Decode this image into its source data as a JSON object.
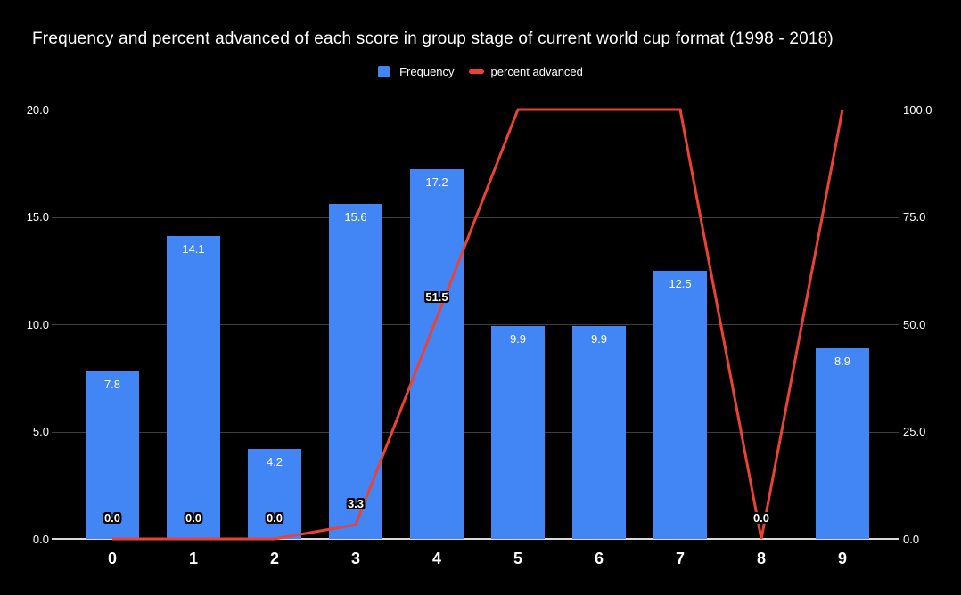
{
  "title": "Frequency and percent advanced of each score in group stage of current world cup format (1998 - 2018)",
  "legend": {
    "items": [
      {
        "label": "Frequency",
        "swatch": "square",
        "color": "#4285f4"
      },
      {
        "label": "percent advanced",
        "swatch": "line",
        "color": "#ea4335"
      }
    ]
  },
  "colors": {
    "background": "#000000",
    "bar": "#4285f4",
    "line": "#ea4335",
    "grid": "#3d3d3d",
    "axis_baseline": "#d9d9d9",
    "text": "#ffffff"
  },
  "chart_data": {
    "type": "bar",
    "subtype": "combo-bar-and-line",
    "title": "Frequency and percent advanced of each score in group stage of current world cup format (1998 - 2018)",
    "categories": [
      "0",
      "1",
      "2",
      "3",
      "4",
      "5",
      "6",
      "7",
      "8",
      "9"
    ],
    "series": [
      {
        "name": "Frequency",
        "type": "bar",
        "axis": "left",
        "color": "#4285f4",
        "values": [
          7.8,
          14.1,
          4.2,
          15.6,
          17.2,
          9.9,
          9.9,
          12.5,
          0,
          8.9
        ],
        "point_labels": [
          "7.8",
          "14.1",
          "4.2",
          "15.6",
          "17.2",
          "9.9",
          "9.9",
          "12.5",
          null,
          "8.9"
        ]
      },
      {
        "name": "percent advanced",
        "type": "line",
        "axis": "right",
        "color": "#ea4335",
        "values": [
          0,
          0,
          0,
          3.3,
          51.5,
          100,
          100,
          100,
          0,
          100
        ],
        "point_labels": [
          "0.0",
          "0.0",
          "0.0",
          "3.3",
          "51.5",
          null,
          null,
          null,
          "0.0",
          null
        ]
      }
    ],
    "left_axis": {
      "min": 0,
      "max": 20,
      "ticks": [
        0,
        5,
        10,
        15,
        20
      ],
      "tick_labels": [
        "0.0",
        "5.0",
        "10.0",
        "15.0",
        "20.0"
      ]
    },
    "right_axis": {
      "min": 0,
      "max": 100,
      "ticks": [
        0,
        25,
        50,
        75,
        100
      ],
      "tick_labels": [
        "0.0",
        "25.0",
        "50.0",
        "75.0",
        "100.0"
      ]
    },
    "grid": true,
    "legend_position": "top",
    "xlabel": "",
    "ylabel_left": "",
    "ylabel_right": ""
  }
}
